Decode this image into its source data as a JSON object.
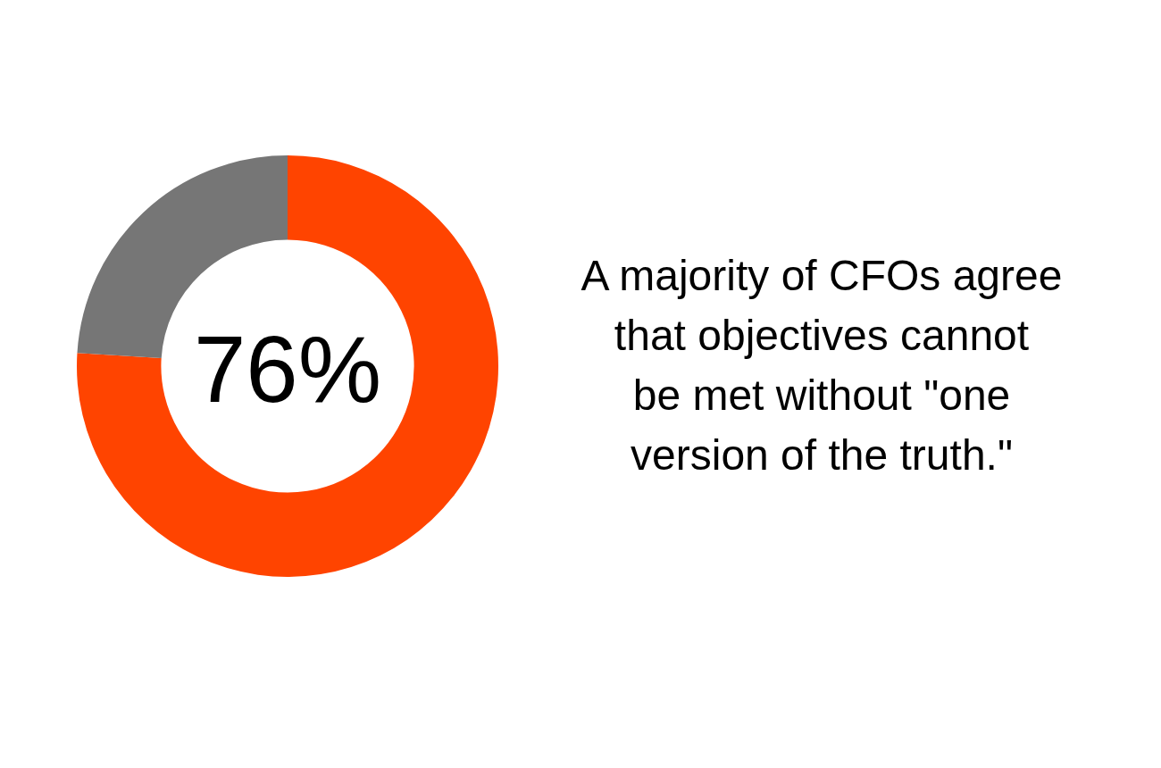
{
  "chart_data": {
    "type": "donut",
    "categories": [
      null,
      null
    ],
    "values": [
      76,
      24
    ],
    "colors": [
      "#ff4400",
      "#767676"
    ],
    "value_labels": [
      "76%",
      null
    ],
    "annotations": [
      "A majority of CFOs agree\nthat objectives cannot\nbe met without \"one\nversion of the truth.\""
    ]
  }
}
